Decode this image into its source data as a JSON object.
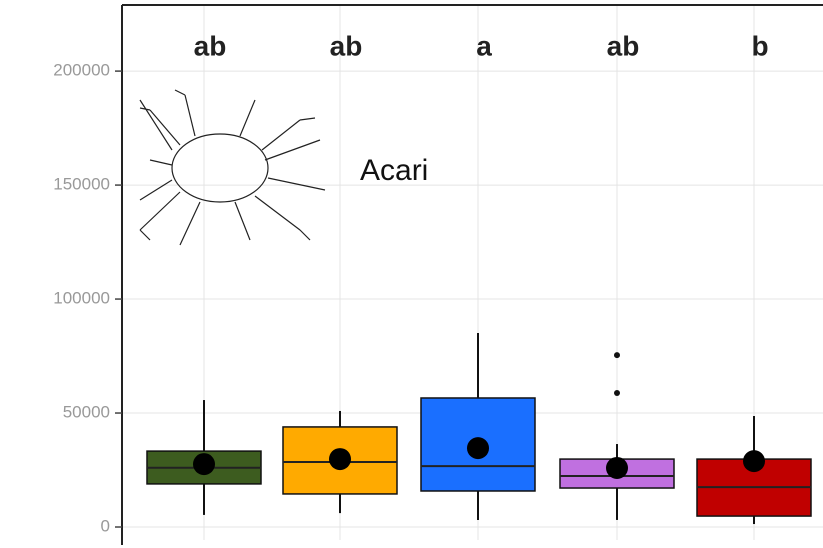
{
  "chart_data": {
    "type": "box",
    "annotation": "Acari",
    "categories": [
      null,
      null,
      null,
      null,
      null
    ],
    "letters": [
      "ab",
      "ab",
      "a",
      "ab",
      "b"
    ],
    "boxes": [
      {
        "color": "#3d5c1f",
        "whisker_low": 5300,
        "q1": 18900,
        "median": 26000,
        "q3": 33300,
        "whisker_high": 55700,
        "mean": 27600,
        "outliers": []
      },
      {
        "color": "#ffaa00",
        "whisker_low": 6100,
        "q1": 14500,
        "median": 28500,
        "q3": 43900,
        "whisker_high": 50900,
        "mean": 29800,
        "outliers": []
      },
      {
        "color": "#1a6fff",
        "whisker_low": 3100,
        "q1": 15800,
        "median": 26700,
        "q3": 56600,
        "whisker_high": 85100,
        "mean": 34600,
        "outliers": []
      },
      {
        "color": "#c070e0",
        "whisker_low": 3100,
        "q1": 17100,
        "median": 22400,
        "q3": 29800,
        "whisker_high": 36400,
        "mean": 25900,
        "outliers": [
          75400,
          58800
        ]
      },
      {
        "color": "#c00000",
        "whisker_low": 1300,
        "q1": 4800,
        "median": 17500,
        "q3": 29800,
        "whisker_high": 48700,
        "mean": 28900,
        "outliers": []
      }
    ],
    "ylim": [
      -5700,
      229000
    ],
    "yticks": [
      0,
      50000,
      100000,
      150000,
      200000
    ],
    "grid": true
  }
}
